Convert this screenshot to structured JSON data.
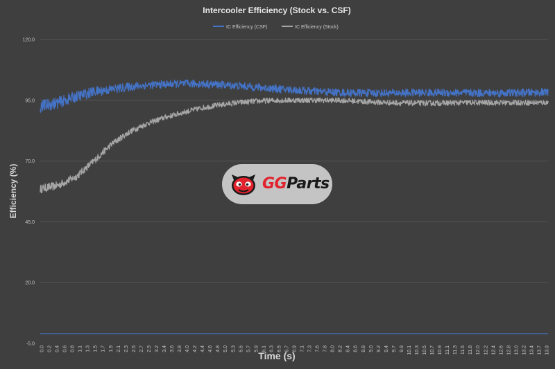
{
  "chart_data": {
    "type": "line",
    "title": "Intercooler Efficiency (Stock vs. CSF)",
    "xlabel": "Time (s)",
    "ylabel": "Efficiency (%)",
    "ylim": [
      -5.0,
      120.0
    ],
    "xlim": [
      0.0,
      14.2
    ],
    "y_ticks": [
      "-5.0",
      "20.0",
      "45.0",
      "70.0",
      "95.0",
      "120.0"
    ],
    "x_ticks": [
      "0.0",
      "0.2",
      "0.4",
      "0.6",
      "0.8",
      "1.1",
      "1.3",
      "1.5",
      "1.7",
      "1.9",
      "2.1",
      "2.3",
      "2.5",
      "2.7",
      "2.9",
      "3.2",
      "3.4",
      "3.6",
      "3.8",
      "4.0",
      "4.2",
      "4.4",
      "4.6",
      "4.8",
      "5.0",
      "5.3",
      "5.5",
      "5.7",
      "5.9",
      "6.1",
      "6.3",
      "6.5",
      "6.7",
      "6.9",
      "7.1",
      "7.3",
      "7.6",
      "7.8",
      "8.0",
      "8.2",
      "8.4",
      "8.6",
      "8.8",
      "9.0",
      "9.2",
      "9.4",
      "9.7",
      "9.9",
      "10.1",
      "10.3",
      "10.5",
      "10.7",
      "10.9",
      "11.1",
      "11.3",
      "11.5",
      "11.8",
      "12.0",
      "12.2",
      "12.4",
      "12.6",
      "12.8",
      "13.0",
      "13.2",
      "13.4",
      "13.7",
      "13.9"
    ],
    "grid": true,
    "legend_position": "top",
    "series": [
      {
        "name": "IC Efficiency (CSF)",
        "color": "#4472c4",
        "x": [
          0.0,
          0.5,
          1.0,
          1.5,
          2.0,
          2.5,
          3.0,
          3.5,
          4.0,
          4.5,
          5.0,
          5.5,
          6.0,
          6.5,
          7.0,
          7.5,
          8.0,
          8.5,
          9.0,
          9.5,
          10.0,
          10.5,
          11.0,
          11.5,
          12.0,
          12.5,
          13.0,
          13.5,
          14.2
        ],
        "values": [
          92.5,
          94.0,
          96.5,
          98.5,
          99.5,
          100.5,
          101.2,
          101.6,
          101.8,
          101.7,
          101.4,
          101.0,
          100.4,
          99.8,
          99.3,
          98.8,
          98.4,
          98.1,
          98.0,
          98.0,
          98.0,
          98.1,
          98.1,
          98.1,
          98.0,
          98.0,
          98.0,
          98.1,
          98.3
        ],
        "noise": 1.6
      },
      {
        "name": "IC Efficiency (Stock)",
        "color": "#a5a5a5",
        "x": [
          0.0,
          0.5,
          1.0,
          1.5,
          2.0,
          2.5,
          3.0,
          3.5,
          4.0,
          4.5,
          5.0,
          5.5,
          6.0,
          6.5,
          7.0,
          7.5,
          8.0,
          8.5,
          9.0,
          9.5,
          10.0,
          10.5,
          11.0,
          11.5,
          12.0,
          12.5,
          13.0,
          13.5,
          14.2
        ],
        "values": [
          58.5,
          60.0,
          63.5,
          70.0,
          77.0,
          82.0,
          85.5,
          88.0,
          90.0,
          91.8,
          93.0,
          94.0,
          94.6,
          94.9,
          95.0,
          95.0,
          95.0,
          94.9,
          94.5,
          94.1,
          93.9,
          93.8,
          93.8,
          93.9,
          94.0,
          94.0,
          94.0,
          94.0,
          94.0
        ],
        "noise": 1.1
      },
      {
        "name": "",
        "color": "#4472c4",
        "x": [
          0.0,
          14.2
        ],
        "values": [
          -1.0,
          -1.0
        ],
        "noise": 0
      }
    ]
  },
  "watermark": {
    "brand_colors": {
      "primary": "#e2232e",
      "secondary": "#1a1a1a",
      "badge": "#c4c4c4"
    },
    "icon": "gg-mascot-icon",
    "text_gg": "GG",
    "text_parts": "Parts"
  }
}
